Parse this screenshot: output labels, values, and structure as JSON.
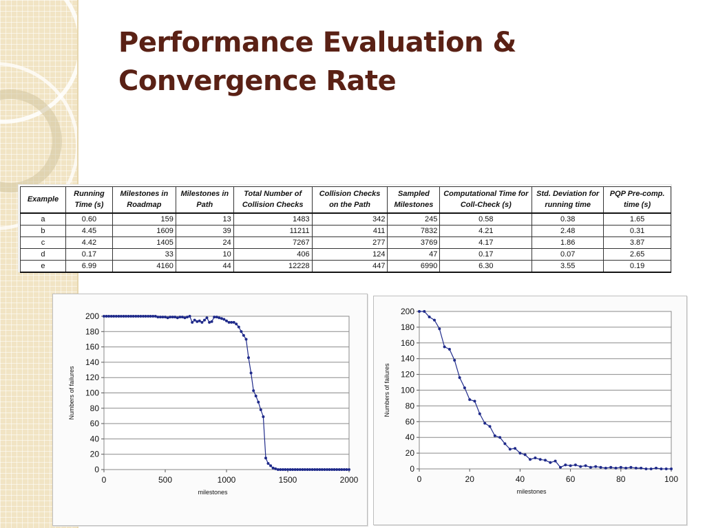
{
  "slide": {
    "title_line1": "Performance Evaluation &",
    "title_line2": "Convergence Rate",
    "title_color": "#5a2115",
    "accent_color": "#f1e4c4"
  },
  "table": {
    "headers": [
      "Example",
      "Running Time (s)",
      "Milestones in Roadmap",
      "Milestones in Path",
      "Total Number of Collision Checks",
      "Collision Checks on the Path",
      "Sampled Milestones",
      "Computational Time for Coll-Check (s)",
      "Std. Deviation for running time",
      "PQP Pre-comp. time (s)"
    ],
    "rows": [
      [
        "a",
        "0.60",
        "159",
        "13",
        "1483",
        "342",
        "245",
        "0.58",
        "0.38",
        "1.65"
      ],
      [
        "b",
        "4.45",
        "1609",
        "39",
        "11211",
        "411",
        "7832",
        "4.21",
        "2.48",
        "0.31"
      ],
      [
        "c",
        "4.42",
        "1405",
        "24",
        "7267",
        "277",
        "3769",
        "4.17",
        "1.86",
        "3.87"
      ],
      [
        "d",
        "0.17",
        "33",
        "10",
        "406",
        "124",
        "47",
        "0.17",
        "0.07",
        "2.65"
      ],
      [
        "e",
        "6.99",
        "4160",
        "44",
        "12228",
        "447",
        "6990",
        "6.30",
        "3.55",
        "0.19"
      ]
    ]
  },
  "chart_data": [
    {
      "type": "line",
      "xlabel": "milestones",
      "ylabel": "Numbers of failures",
      "xlim": [
        0,
        2000
      ],
      "ylim": [
        0,
        200
      ],
      "xticks": [
        "0",
        "500",
        "1000",
        "1500",
        "2000"
      ],
      "yticks": [
        "0",
        "20",
        "40",
        "60",
        "80",
        "100",
        "120",
        "140",
        "160",
        "180",
        "200"
      ],
      "grid": true,
      "series_color": "#1f2a8a",
      "series": [
        {
          "x": [
            0,
            20,
            40,
            60,
            80,
            100,
            120,
            140,
            160,
            180,
            200,
            220,
            240,
            260,
            280,
            300,
            320,
            340,
            360,
            380,
            400,
            420,
            440,
            460,
            480,
            500,
            520,
            540,
            560,
            580,
            600,
            620,
            640,
            660,
            680,
            700,
            720,
            740,
            760,
            780,
            800,
            820,
            840,
            860,
            880,
            900,
            920,
            940,
            960,
            980,
            1000,
            1020,
            1040,
            1060,
            1080,
            1100,
            1120,
            1140,
            1160,
            1180,
            1200,
            1220,
            1240,
            1260,
            1280,
            1300,
            1320,
            1340,
            1360,
            1380,
            1400,
            1420,
            1440,
            1460,
            1480,
            1500,
            1520,
            1540,
            1560,
            1580,
            1600,
            1620,
            1640,
            1660,
            1680,
            1700,
            1720,
            1740,
            1760,
            1780,
            1800,
            1820,
            1840,
            1860,
            1880,
            1900,
            1920,
            1940,
            1960,
            1980,
            2000
          ],
          "y": [
            200,
            200,
            200,
            200,
            200,
            200,
            200,
            200,
            200,
            200,
            200,
            200,
            200,
            200,
            200,
            200,
            200,
            200,
            200,
            200,
            200,
            200,
            199,
            199,
            199,
            199,
            198,
            199,
            199,
            199,
            198,
            199,
            199,
            198,
            199,
            200,
            192,
            195,
            193,
            194,
            192,
            195,
            198,
            192,
            193,
            199,
            199,
            198,
            197,
            196,
            194,
            192,
            192,
            192,
            190,
            186,
            180,
            175,
            170,
            146,
            126,
            103,
            96,
            88,
            78,
            69,
            15,
            8,
            5,
            2,
            1,
            0,
            0,
            0,
            0,
            0,
            0,
            0,
            0,
            0,
            0,
            0,
            0,
            0,
            0,
            0,
            0,
            0,
            0,
            0,
            0,
            0,
            0,
            0,
            0,
            0,
            0,
            0,
            0,
            0,
            0
          ]
        }
      ]
    },
    {
      "type": "line",
      "xlabel": "milestones",
      "ylabel": "Numbers of failures",
      "xlim": [
        0,
        100
      ],
      "ylim": [
        0,
        200
      ],
      "xticks": [
        "0",
        "20",
        "40",
        "60",
        "80",
        "100"
      ],
      "yticks": [
        "0",
        "20",
        "40",
        "60",
        "80",
        "100",
        "120",
        "140",
        "160",
        "180",
        "200"
      ],
      "grid": true,
      "series_color": "#1f2a8a",
      "series": [
        {
          "x": [
            0,
            2,
            4,
            6,
            8,
            10,
            12,
            14,
            16,
            18,
            20,
            22,
            24,
            26,
            28,
            30,
            32,
            34,
            36,
            38,
            40,
            42,
            44,
            46,
            48,
            50,
            52,
            54,
            56,
            58,
            60,
            62,
            64,
            66,
            68,
            70,
            72,
            74,
            76,
            78,
            80,
            82,
            84,
            86,
            88,
            90,
            92,
            94,
            96,
            98,
            100
          ],
          "y": [
            200,
            200,
            193,
            189,
            178,
            155,
            152,
            138,
            116,
            103,
            88,
            86,
            70,
            58,
            54,
            42,
            40,
            32,
            25,
            26,
            20,
            18,
            12,
            14,
            12,
            11,
            8,
            10,
            2,
            5,
            4,
            5,
            3,
            4,
            2,
            3,
            2,
            1,
            2,
            1,
            2,
            1,
            2,
            1,
            1,
            0,
            0,
            1,
            0,
            0,
            0
          ]
        }
      ]
    }
  ]
}
